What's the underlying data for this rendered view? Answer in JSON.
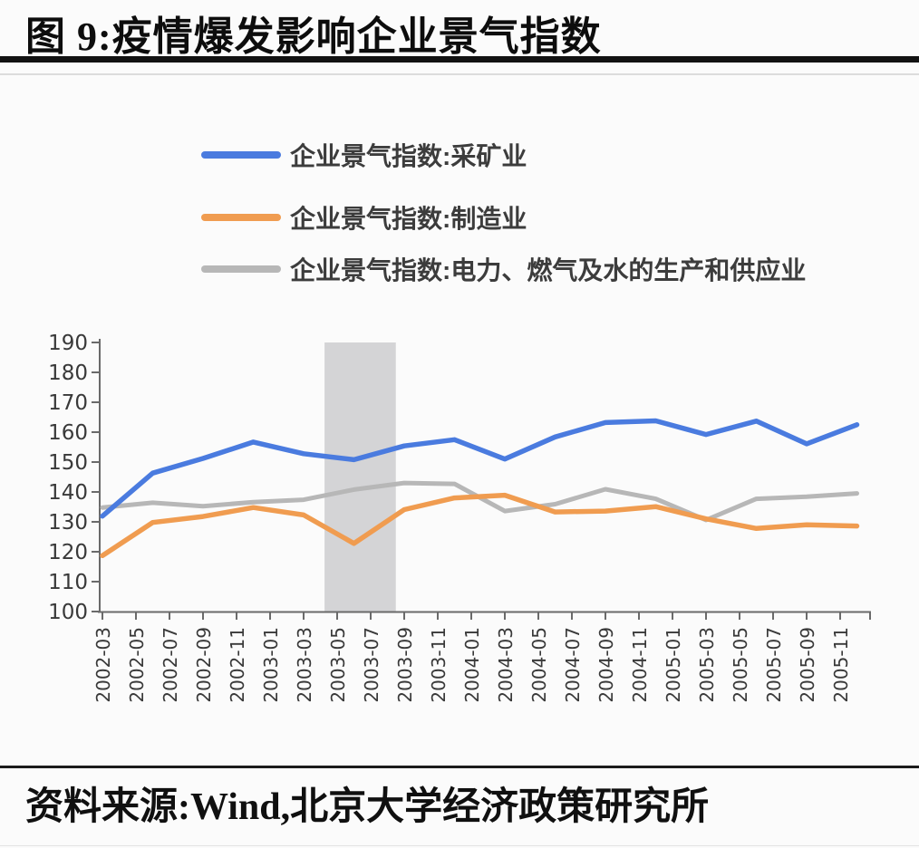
{
  "figure": {
    "title": "图 9:疫情爆发影响企业景气指数",
    "source": "资料来源:Wind,北京大学经济政策研究所"
  },
  "colors": {
    "mining_blue": "#4a7bdf",
    "manufacturing_orange": "#f09c50",
    "utilities_gray": "#b7b7b7",
    "band_gray": "#d4d4d6",
    "axis": "#6a6a6a",
    "tick_label": "#393939"
  },
  "chart_data": {
    "type": "line",
    "title": "",
    "xlabel": "",
    "ylabel": "",
    "ylim": [
      100,
      190
    ],
    "ytick_step": 10,
    "grid": false,
    "legend_position": "top-left-stacked",
    "x_tick_labels": [
      "2002-03",
      "2002-05",
      "2002-07",
      "2002-09",
      "2002-11",
      "2003-01",
      "2003-03",
      "2003-05",
      "2003-07",
      "2003-09",
      "2003-11",
      "2004-01",
      "2004-03",
      "2004-05",
      "2004-07",
      "2004-09",
      "2004-11",
      "2005-01",
      "2005-03",
      "2005-05",
      "2005-07",
      "2005-09",
      "2005-11"
    ],
    "categories": [
      "2002-03",
      "2002-06",
      "2002-09",
      "2002-12",
      "2003-03",
      "2003-06",
      "2003-09",
      "2003-12",
      "2004-03",
      "2004-06",
      "2004-09",
      "2004-12",
      "2005-03",
      "2005-06",
      "2005-09",
      "2005-12"
    ],
    "series": [
      {
        "id": "mining",
        "name": "企业景气指数:采矿业",
        "color": "#4a7bdf",
        "values": [
          131.9,
          146.3,
          151.2,
          156.7,
          152.8,
          150.8,
          155.4,
          157.5,
          151.0,
          158.4,
          163.2,
          163.8,
          159.2,
          163.7,
          156.1,
          162.5
        ]
      },
      {
        "id": "manufacturing",
        "name": "企业景气指数:制造业",
        "color": "#f09c50",
        "values": [
          118.7,
          129.8,
          131.8,
          134.8,
          132.3,
          122.8,
          134.1,
          138.0,
          138.9,
          133.3,
          133.6,
          135.1,
          131.0,
          127.8,
          129.0,
          128.6
        ]
      },
      {
        "id": "utilities",
        "name": "企业景气指数:电力、燃气及水的生产和供应业",
        "color": "#b7b7b7",
        "values": [
          134.8,
          136.4,
          135.2,
          136.6,
          137.4,
          140.8,
          143.0,
          142.7,
          133.6,
          135.9,
          140.9,
          137.7,
          130.6,
          137.7,
          138.4,
          139.5
        ]
      }
    ],
    "highlight_band": {
      "from": "2003-04",
      "to": "2003-08",
      "from_month_offset": 13.25,
      "to_month_offset": 17.5,
      "color": "#d4d4d6"
    }
  }
}
